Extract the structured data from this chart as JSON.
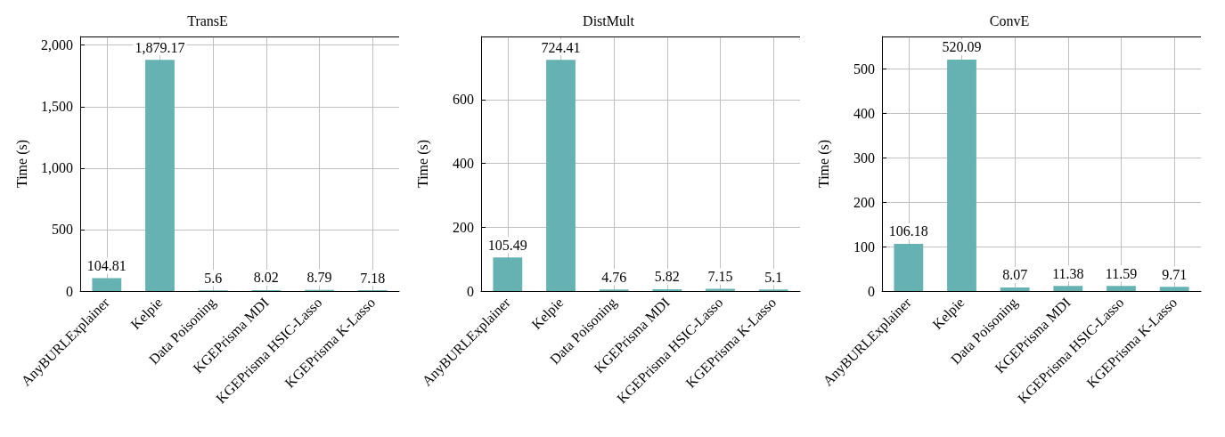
{
  "chart_data": [
    {
      "type": "bar",
      "title": "TransE",
      "ylabel": "Time (s)",
      "categories": [
        "AnyBURLExplainer",
        "Kelpie",
        "Data Poisoning",
        "KGEPrisma MDI",
        "KGEPrisma HSIC-Lasso",
        "KGEPrisma K-Lasso"
      ],
      "values": [
        104.81,
        1879.17,
        5.6,
        8.02,
        8.79,
        7.18
      ],
      "value_labels": [
        "104.81",
        "1,879.17",
        "5.6",
        "8.02",
        "8.79",
        "7.18"
      ],
      "color": "#66b2b2",
      "ylim": [
        0,
        2070
      ],
      "yticks": [
        0,
        500,
        {
          "value": 1000,
          "label": "1,000"
        },
        {
          "value": 1500,
          "label": "1,500"
        },
        {
          "value": 2000,
          "label": "2,000"
        }
      ],
      "grid": true
    },
    {
      "type": "bar",
      "title": "DistMult",
      "ylabel": "Time (s)",
      "categories": [
        "AnyBURLExplainer",
        "Kelpie",
        "Data Poisoning",
        "KGEPrisma MDI",
        "KGEPrisma HSIC-Lasso",
        "KGEPrisma K-Lasso"
      ],
      "values": [
        105.49,
        724.41,
        4.76,
        5.82,
        7.15,
        5.1
      ],
      "value_labels": [
        "105.49",
        "724.41",
        "4.76",
        "5.82",
        "7.15",
        "5.1"
      ],
      "color": "#66b2b2",
      "ylim": [
        0,
        798
      ],
      "yticks": [
        0,
        200,
        400,
        600
      ],
      "grid": true
    },
    {
      "type": "bar",
      "title": "ConvE",
      "ylabel": "Time (s)",
      "categories": [
        "AnyBURLExplainer",
        "Kelpie",
        "Data Poisoning",
        "KGEPrisma MDI",
        "KGEPrisma HSIC-Lasso",
        "KGEPrisma K-Lasso"
      ],
      "values": [
        106.18,
        520.09,
        8.07,
        11.38,
        11.59,
        9.71
      ],
      "value_labels": [
        "106.18",
        "520.09",
        "8.07",
        "11.38",
        "11.59",
        "9.71"
      ],
      "color": "#66b2b2",
      "ylim": [
        0,
        572
      ],
      "yticks": [
        0,
        100,
        200,
        300,
        400,
        500
      ],
      "grid": true
    }
  ]
}
